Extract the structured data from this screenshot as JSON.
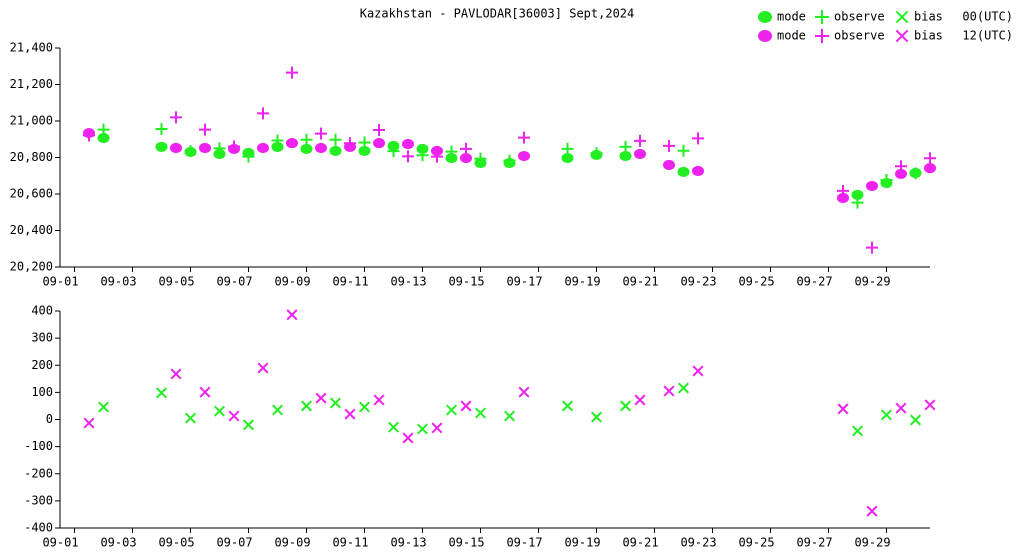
{
  "chart_data": [
    {
      "type": "scatter",
      "title": "Kazakhstan - PAVLODAR[36003] Sept,2024",
      "xlim": [
        -0.5,
        29.5
      ],
      "xticks": [
        {
          "value": 0,
          "label": "09-01"
        },
        {
          "value": 2,
          "label": "09-03"
        },
        {
          "value": 4,
          "label": "09-05"
        },
        {
          "value": 6,
          "label": "09-07"
        },
        {
          "value": 8,
          "label": "09-09"
        },
        {
          "value": 10,
          "label": "09-11"
        },
        {
          "value": 12,
          "label": "09-13"
        },
        {
          "value": 14,
          "label": "09-15"
        },
        {
          "value": 16,
          "label": "09-17"
        },
        {
          "value": 18,
          "label": "09-19"
        },
        {
          "value": 20,
          "label": "09-21"
        },
        {
          "value": 22,
          "label": "09-23"
        },
        {
          "value": 24,
          "label": "09-25"
        },
        {
          "value": 26,
          "label": "09-27"
        },
        {
          "value": 28,
          "label": "09-29"
        }
      ],
      "ylim": [
        20200,
        21400
      ],
      "yticks": [
        {
          "value": 20200,
          "label": "20,200"
        },
        {
          "value": 20400,
          "label": "20,400"
        },
        {
          "value": 20600,
          "label": "20,600"
        },
        {
          "value": 20800,
          "label": "20,800"
        },
        {
          "value": 21000,
          "label": "21,000"
        },
        {
          "value": 21200,
          "label": "21,200"
        },
        {
          "value": 21400,
          "label": "21,400"
        }
      ],
      "series": [
        {
          "name": "mode",
          "time": "00(UTC)",
          "color": "#22ee22",
          "marker": "circle",
          "x": [
            1,
            3,
            4,
            5,
            6,
            7,
            8,
            9,
            10,
            11,
            12,
            13,
            14,
            15,
            17,
            18,
            19,
            21,
            27,
            28,
            29
          ],
          "values": [
            20907,
            20858,
            20830,
            20819,
            20825,
            20858,
            20847,
            20836,
            20836,
            20863,
            20847,
            20797,
            20770,
            20770,
            20797,
            20814,
            20808,
            20721,
            20595,
            20660,
            20715
          ]
        },
        {
          "name": "observe",
          "time": "00(UTC)",
          "color": "#22ee22",
          "marker": "plus",
          "x": [
            1,
            3,
            4,
            5,
            6,
            7,
            8,
            9,
            10,
            11,
            12,
            13,
            14,
            15,
            17,
            18,
            19,
            21,
            27,
            28,
            29
          ],
          "values": [
            20953,
            20956,
            20835,
            20850,
            20805,
            20893,
            20897,
            20897,
            20882,
            20835,
            20812,
            20832,
            20794,
            20783,
            20847,
            20823,
            20858,
            20837,
            20553,
            20677,
            20713
          ]
        },
        {
          "name": "mode",
          "time": "12(UTC)",
          "color": "#ee22ee",
          "marker": "circle",
          "x": [
            0.5,
            3.5,
            4.5,
            5.5,
            6.5,
            7.5,
            8.5,
            9.5,
            10.5,
            11.5,
            12.5,
            13.5,
            15.5,
            19.5,
            20.5,
            21.5,
            26.5,
            27.5,
            28.5,
            29.5
          ],
          "values": [
            20934,
            20852,
            20852,
            20847,
            20852,
            20879,
            20852,
            20858,
            20879,
            20874,
            20836,
            20797,
            20808,
            20819,
            20759,
            20726,
            20578,
            20644,
            20710,
            20742
          ]
        },
        {
          "name": "observe",
          "time": "12(UTC)",
          "color": "#ee22ee",
          "marker": "plus",
          "x": [
            0.5,
            3.5,
            4.5,
            5.5,
            6.5,
            7.5,
            8.5,
            9.5,
            10.5,
            11.5,
            12.5,
            13.5,
            15.5,
            19.5,
            20.5,
            21.5,
            26.5,
            27.5,
            28.5,
            29.5
          ],
          "values": [
            20921,
            21020,
            20953,
            20860,
            21042,
            21265,
            20931,
            20878,
            20951,
            20806,
            20805,
            20847,
            20909,
            20891,
            20864,
            20905,
            20617,
            20306,
            20752,
            20796
          ]
        }
      ]
    },
    {
      "type": "scatter",
      "xlim": [
        -0.5,
        29.5
      ],
      "xticks": [
        {
          "value": 0,
          "label": "09-01"
        },
        {
          "value": 2,
          "label": "09-03"
        },
        {
          "value": 4,
          "label": "09-05"
        },
        {
          "value": 6,
          "label": "09-07"
        },
        {
          "value": 8,
          "label": "09-09"
        },
        {
          "value": 10,
          "label": "09-11"
        },
        {
          "value": 12,
          "label": "09-13"
        },
        {
          "value": 14,
          "label": "09-15"
        },
        {
          "value": 16,
          "label": "09-17"
        },
        {
          "value": 18,
          "label": "09-19"
        },
        {
          "value": 20,
          "label": "09-21"
        },
        {
          "value": 22,
          "label": "09-23"
        },
        {
          "value": 24,
          "label": "09-25"
        },
        {
          "value": 26,
          "label": "09-27"
        },
        {
          "value": 28,
          "label": "09-29"
        }
      ],
      "ylim": [
        -400,
        400
      ],
      "yticks": [
        -400,
        -300,
        -200,
        -100,
        0,
        100,
        200,
        300,
        400
      ],
      "series": [
        {
          "name": "bias",
          "time": "00(UTC)",
          "color": "#22ee22",
          "marker": "cross",
          "x": [
            1,
            3,
            4,
            5,
            6,
            7,
            8,
            9,
            10,
            11,
            12,
            13,
            14,
            15,
            17,
            18,
            19,
            21,
            27,
            28,
            29
          ],
          "values": [
            46,
            98,
            5,
            31,
            -20,
            35,
            50,
            61,
            46,
            -28,
            -35,
            35,
            24,
            13,
            50,
            9,
            50,
            116,
            -42,
            17,
            -2
          ]
        },
        {
          "name": "bias",
          "time": "12(UTC)",
          "color": "#ee22ee",
          "marker": "cross",
          "x": [
            0.5,
            3.5,
            4.5,
            5.5,
            6.5,
            7.5,
            8.5,
            9.5,
            10.5,
            11.5,
            12.5,
            13.5,
            15.5,
            19.5,
            20.5,
            21.5,
            26.5,
            27.5,
            28.5,
            29.5
          ],
          "values": [
            -13,
            168,
            101,
            13,
            190,
            386,
            79,
            20,
            72,
            -68,
            -31,
            50,
            101,
            72,
            105,
            179,
            39,
            -338,
            42,
            54
          ]
        }
      ]
    }
  ]
}
